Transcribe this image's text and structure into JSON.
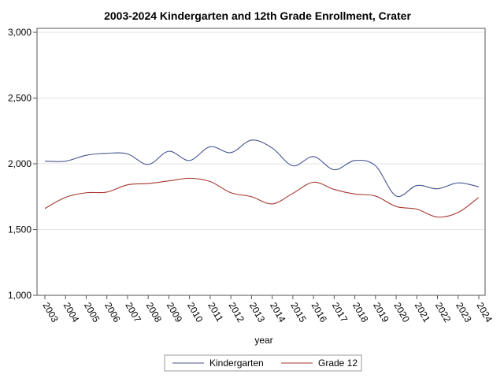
{
  "chart_data": {
    "type": "line",
    "title": "2003-2024 Kindergarten and 12th Grade Enrollment, Crater",
    "xlabel": "year",
    "ylabel": "",
    "x": [
      "2003",
      "2004",
      "2005",
      "2006",
      "2007",
      "2008",
      "2009",
      "2010",
      "2011",
      "2012",
      "2013",
      "2014",
      "2015",
      "2016",
      "2017",
      "2018",
      "2019",
      "2020",
      "2021",
      "2022",
      "2023",
      "2024"
    ],
    "ylim": [
      1000,
      3000
    ],
    "yticks": [
      1000,
      1500,
      2000,
      2500,
      3000
    ],
    "ytick_labels": [
      "1,000",
      "1,500",
      "2,000",
      "2,500",
      "3,000"
    ],
    "grid": true,
    "legend_position": "bottom",
    "series": [
      {
        "name": "Kindergarten",
        "color": "#44558f",
        "values": [
          2020,
          2020,
          2065,
          2080,
          2075,
          1995,
          2095,
          2025,
          2130,
          2085,
          2180,
          2120,
          1985,
          2055,
          1955,
          2025,
          1985,
          1755,
          1835,
          1810,
          1855,
          1825
        ]
      },
      {
        "name": "Grade 12",
        "color": "#a5372f",
        "values": [
          1660,
          1745,
          1780,
          1785,
          1840,
          1850,
          1870,
          1890,
          1865,
          1780,
          1750,
          1695,
          1775,
          1860,
          1805,
          1770,
          1755,
          1675,
          1655,
          1595,
          1630,
          1745
        ]
      }
    ]
  }
}
